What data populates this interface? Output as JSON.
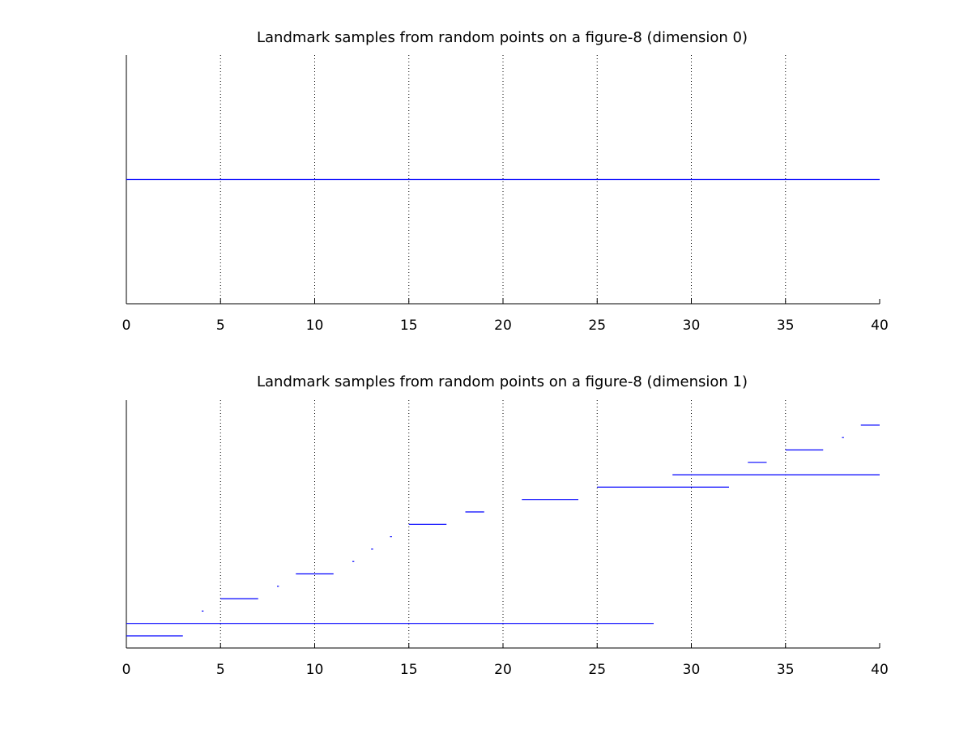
{
  "chart_data": [
    {
      "type": "barcode",
      "title": "Landmark samples from random points on a figure-8 (dimension 0)",
      "xlabel": "",
      "ylabel": "",
      "xlim": [
        0,
        40
      ],
      "xticks": [
        "0",
        "5",
        "10",
        "15",
        "20",
        "25",
        "30",
        "35",
        "40"
      ],
      "grid": "vertical dotted at x ticks",
      "colors": {
        "bars": "#0000ff",
        "axes": "#000000"
      },
      "intervals": [
        {
          "birth": 0,
          "death": 40
        }
      ]
    },
    {
      "type": "barcode",
      "title": "Landmark samples from random points on a figure-8 (dimension 1)",
      "xlabel": "",
      "ylabel": "",
      "xlim": [
        0,
        40
      ],
      "xticks": [
        "0",
        "5",
        "10",
        "15",
        "20",
        "25",
        "30",
        "35",
        "40"
      ],
      "grid": "vertical dotted at x ticks",
      "colors": {
        "bars": "#0000ff",
        "axes": "#000000"
      },
      "intervals": [
        {
          "birth": 0,
          "death": 3
        },
        {
          "birth": 0,
          "death": 28
        },
        {
          "birth": 4,
          "death": 4.1
        },
        {
          "birth": 5,
          "death": 7
        },
        {
          "birth": 8,
          "death": 8.1
        },
        {
          "birth": 9,
          "death": 11
        },
        {
          "birth": 12,
          "death": 12.1
        },
        {
          "birth": 13,
          "death": 13.1
        },
        {
          "birth": 14,
          "death": 14.1
        },
        {
          "birth": 15,
          "death": 17
        },
        {
          "birth": 18,
          "death": 19
        },
        {
          "birth": 21,
          "death": 24
        },
        {
          "birth": 25,
          "death": 32
        },
        {
          "birth": 29,
          "death": 40
        },
        {
          "birth": 33,
          "death": 34
        },
        {
          "birth": 35,
          "death": 37
        },
        {
          "birth": 38,
          "death": 38.1
        },
        {
          "birth": 39,
          "death": 40
        }
      ]
    }
  ]
}
